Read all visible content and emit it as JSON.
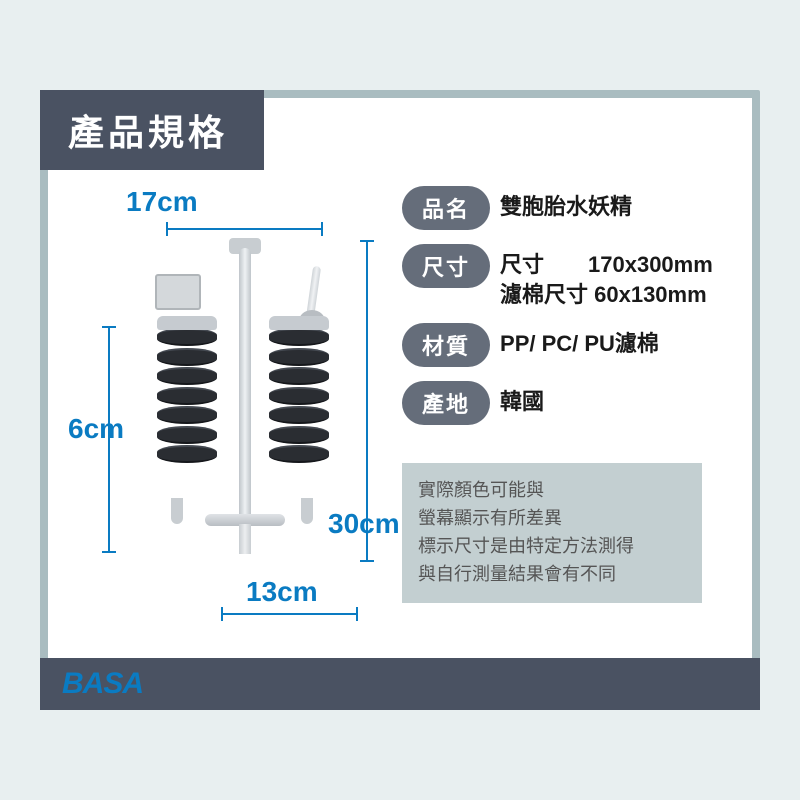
{
  "header": {
    "title": "產品規格"
  },
  "dimensions": {
    "top": "17cm",
    "left": "6cm",
    "right": "30cm",
    "bottom": "13cm"
  },
  "specs": [
    {
      "label": "品名",
      "value": "雙胞胎水妖精"
    },
    {
      "label": "尺寸",
      "value": "尺寸　　170x300mm\n濾棉尺寸 60x130mm"
    },
    {
      "label": "材質",
      "value": "PP/ PC/ PU濾棉"
    },
    {
      "label": "產地",
      "value": "韓國"
    }
  ],
  "disclaimer": {
    "line1": "實際顏色可能與",
    "line2": "螢幕顯示有所差異",
    "line3": "標示尺寸是由特定方法測得",
    "line4": "與自行測量結果會有不同"
  },
  "brand": "BASA",
  "colors": {
    "page_bg": "#e8eff0",
    "card_border": "#a9bcc0",
    "header_bg": "#4a5262",
    "accent": "#0a7bc2",
    "pill_bg": "#656d7a",
    "disclaimer_bg": "#c3cfd1"
  }
}
